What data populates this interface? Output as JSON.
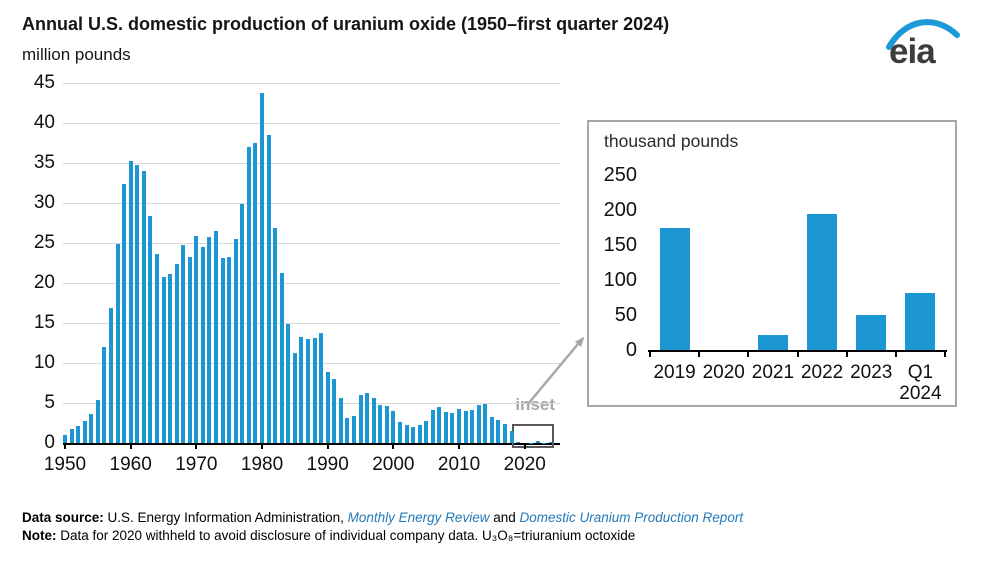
{
  "page": {
    "title": "Annual U.S. domestic production of uranium oxide (1950–first quarter 2024)",
    "subtitle": "million pounds",
    "logo_text": "eia",
    "inset_label": "inset"
  },
  "chart_data": [
    {
      "type": "bar",
      "name": "main",
      "title": "Annual U.S. domestic production of uranium oxide (1950–first quarter 2024)",
      "ylabel": "million pounds",
      "ylim": [
        0,
        45
      ],
      "yticks": [
        0,
        5,
        10,
        15,
        20,
        25,
        30,
        35,
        40,
        45
      ],
      "xticks": [
        1950,
        1960,
        1970,
        1980,
        1990,
        2000,
        2010,
        2020
      ],
      "grid": true,
      "legend": "none",
      "years": [
        1950,
        1951,
        1952,
        1953,
        1954,
        1955,
        1956,
        1957,
        1958,
        1959,
        1960,
        1961,
        1962,
        1963,
        1964,
        1965,
        1966,
        1967,
        1968,
        1969,
        1970,
        1971,
        1972,
        1973,
        1974,
        1975,
        1976,
        1977,
        1978,
        1979,
        1980,
        1981,
        1982,
        1983,
        1984,
        1985,
        1986,
        1987,
        1988,
        1989,
        1990,
        1991,
        1992,
        1993,
        1994,
        1995,
        1996,
        1997,
        1998,
        1999,
        2000,
        2001,
        2002,
        2003,
        2004,
        2005,
        2006,
        2007,
        2008,
        2009,
        2010,
        2011,
        2012,
        2013,
        2014,
        2015,
        2016,
        2017,
        2018,
        2019,
        2020,
        2021,
        2022,
        2023,
        2024
      ],
      "values": [
        1.0,
        1.7,
        2.1,
        2.7,
        3.6,
        5.4,
        12.0,
        16.9,
        24.9,
        32.4,
        35.2,
        34.7,
        34.0,
        28.4,
        23.6,
        20.8,
        21.1,
        22.4,
        24.7,
        23.2,
        25.9,
        24.5,
        25.8,
        26.5,
        23.1,
        23.2,
        25.5,
        29.9,
        37.0,
        37.5,
        43.7,
        38.5,
        26.9,
        21.2,
        14.9,
        11.3,
        13.3,
        13.0,
        13.1,
        13.8,
        8.9,
        8.0,
        5.6,
        3.1,
        3.4,
        6.0,
        6.3,
        5.6,
        4.7,
        4.6,
        4.0,
        2.6,
        2.3,
        2.0,
        2.3,
        2.7,
        4.1,
        4.5,
        3.9,
        3.7,
        4.2,
        4.0,
        4.1,
        4.7,
        4.9,
        3.3,
        2.9,
        2.4,
        1.5,
        0.17,
        null,
        0.02,
        0.19,
        0.05,
        0.08
      ]
    },
    {
      "type": "bar",
      "name": "inset",
      "title": "thousand pounds",
      "ylim": [
        0,
        250
      ],
      "yticks": [
        0,
        50,
        100,
        150,
        200,
        250
      ],
      "grid": false,
      "legend": "none",
      "categories": [
        "2019",
        "2020",
        "2021",
        "2022",
        "2023",
        "Q1 2024"
      ],
      "values": [
        174,
        null,
        21,
        194,
        50,
        82
      ]
    }
  ],
  "footer": {
    "source_prefix": "Data source:",
    "source_text": " U.S. Energy Information Administration, ",
    "source_link_1": "Monthly Energy Review",
    "source_and": " and ",
    "source_link_2": "Domestic Uranium Production Report",
    "note_prefix": "Note:",
    "note_text": " Data for 2020 withheld to avoid disclosure of individual company data. U₃O₈=triuranium octoxide"
  },
  "colors": {
    "bar": "#1d97d4",
    "grid": "#d9d9d9",
    "axis": "#000000",
    "inset_gray": "#a6a6a6",
    "inset_box_border": "#595959",
    "link": "#2479b9",
    "logo_blue": "#1e99d8",
    "logo_text": "#3c3c3c"
  }
}
